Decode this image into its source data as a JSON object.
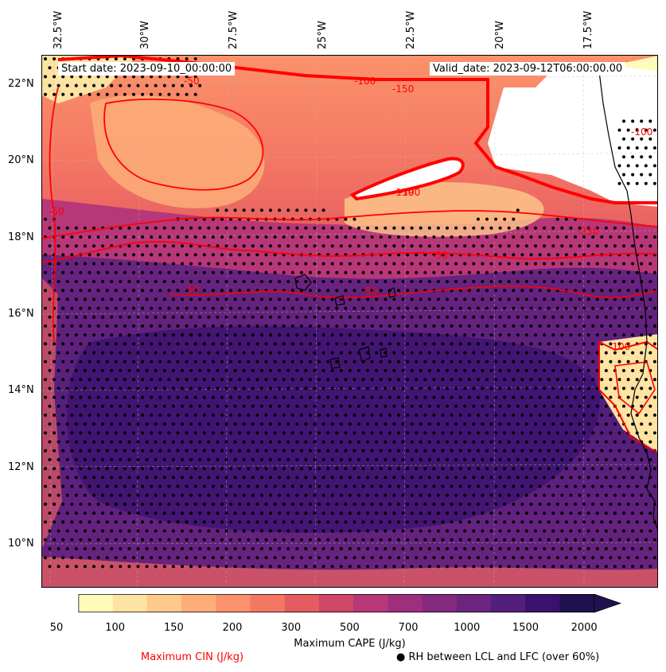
{
  "map": {
    "start_date": "Start date: 2023-09-10_00:00:00",
    "valid_date": "Valid_date: 2023-09-12T06:00:00.00",
    "lon_labels": [
      "32.5°W",
      "30°W",
      "27.5°W",
      "25°W",
      "22.5°W",
      "20°W",
      "17.5°W"
    ],
    "lat_labels": [
      "22°N",
      "20°N",
      "18°N",
      "16°N",
      "14°N",
      "12°N",
      "10°N"
    ],
    "contour_labels": [
      "-50",
      "-100",
      "-150",
      "-150",
      "-190",
      "-250",
      "-100",
      "-50",
      "-50",
      "-50",
      "-50",
      "-100"
    ],
    "colors": {
      "cin_contour": "#ff0000",
      "coast": "#000000",
      "stipple": "#000000"
    }
  },
  "colorbar": {
    "title": "Maximum CAPE (J/kg)",
    "ticks": [
      "50",
      "100",
      "150",
      "200",
      "300",
      "500",
      "700",
      "1000",
      "1500",
      "2000"
    ],
    "colors": [
      "#fffcbb",
      "#fee3a2",
      "#fec98b",
      "#fdae78",
      "#fb926b",
      "#f47764",
      "#e45c62",
      "#cf4667",
      "#b73779",
      "#9e2f7f",
      "#852a7f",
      "#6c2480",
      "#531e7c",
      "#3b1170",
      "#221150"
    ]
  },
  "legend": {
    "cin": "Maximum CIN (J/kg)",
    "rh": "RH between LCL and LFC (over 60%)",
    "rh_marker": "●"
  }
}
